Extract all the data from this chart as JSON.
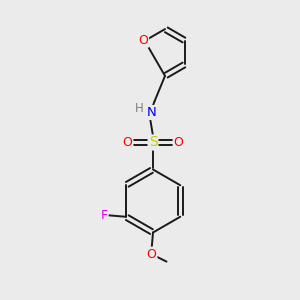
{
  "bg_color": "#ebebeb",
  "bond_color": "#1a1a1a",
  "atom_colors": {
    "O": "#ff0000",
    "N": "#0000ee",
    "S": "#cccc00",
    "F": "#dd00dd",
    "H": "#808080"
  },
  "figsize": [
    3.0,
    3.0
  ],
  "dpi": 100
}
